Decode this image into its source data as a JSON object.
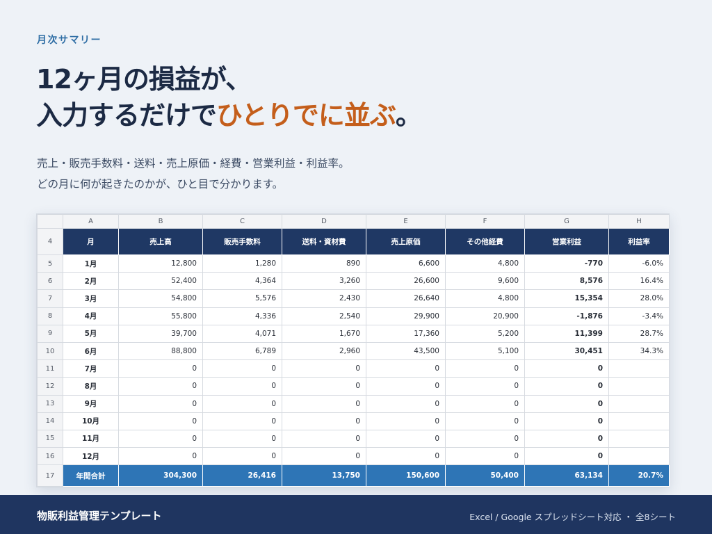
{
  "eyebrow": "月次サマリー",
  "headline": {
    "line1": "12ヶ月の損益が、",
    "line2_plain": "入力するだけで",
    "line2_accent": "ひとりでに並ぶ",
    "line2_end": "。"
  },
  "subtext": {
    "line1": "売上・販売手数料・送料・売上原価・経費・営業利益・利益率。",
    "line2": "どの月に何が起きたのかが、ひと目で分かります。"
  },
  "colors": {
    "header_bg": "#1f3864",
    "total_bg": "#2e75b6",
    "accent": "#c45e1b",
    "footer_bg": "#1f3560"
  },
  "sheet": {
    "column_letters": [
      "A",
      "B",
      "C",
      "D",
      "E",
      "F",
      "G",
      "H"
    ],
    "header_row_number": "4",
    "headers": [
      "月",
      "売上高",
      "販売手数料",
      "送料・資材費",
      "売上原価",
      "その他経費",
      "営業利益",
      "利益率"
    ],
    "rows": [
      {
        "n": "5",
        "cells": [
          "1月",
          "12,800",
          "1,280",
          "890",
          "6,600",
          "4,800",
          "-770",
          "-6.0%"
        ]
      },
      {
        "n": "6",
        "cells": [
          "2月",
          "52,400",
          "4,364",
          "3,260",
          "26,600",
          "9,600",
          "8,576",
          "16.4%"
        ]
      },
      {
        "n": "7",
        "cells": [
          "3月",
          "54,800",
          "5,576",
          "2,430",
          "26,640",
          "4,800",
          "15,354",
          "28.0%"
        ]
      },
      {
        "n": "8",
        "cells": [
          "4月",
          "55,800",
          "4,336",
          "2,540",
          "29,900",
          "20,900",
          "-1,876",
          "-3.4%"
        ]
      },
      {
        "n": "9",
        "cells": [
          "5月",
          "39,700",
          "4,071",
          "1,670",
          "17,360",
          "5,200",
          "11,399",
          "28.7%"
        ]
      },
      {
        "n": "10",
        "cells": [
          "6月",
          "88,800",
          "6,789",
          "2,960",
          "43,500",
          "5,100",
          "30,451",
          "34.3%"
        ]
      },
      {
        "n": "11",
        "cells": [
          "7月",
          "0",
          "0",
          "0",
          "0",
          "0",
          "0",
          ""
        ]
      },
      {
        "n": "12",
        "cells": [
          "8月",
          "0",
          "0",
          "0",
          "0",
          "0",
          "0",
          ""
        ]
      },
      {
        "n": "13",
        "cells": [
          "9月",
          "0",
          "0",
          "0",
          "0",
          "0",
          "0",
          ""
        ]
      },
      {
        "n": "14",
        "cells": [
          "10月",
          "0",
          "0",
          "0",
          "0",
          "0",
          "0",
          ""
        ]
      },
      {
        "n": "15",
        "cells": [
          "11月",
          "0",
          "0",
          "0",
          "0",
          "0",
          "0",
          ""
        ]
      },
      {
        "n": "16",
        "cells": [
          "12月",
          "0",
          "0",
          "0",
          "0",
          "0",
          "0",
          ""
        ]
      }
    ],
    "total": {
      "n": "17",
      "cells": [
        "年間合計",
        "304,300",
        "26,416",
        "13,750",
        "150,600",
        "50,400",
        "63,134",
        "20.7%"
      ]
    }
  },
  "footer": {
    "brand": "物販利益管理テンプレート",
    "compat": "Excel / Google スプレッドシート対応 ・ 全8シート"
  }
}
